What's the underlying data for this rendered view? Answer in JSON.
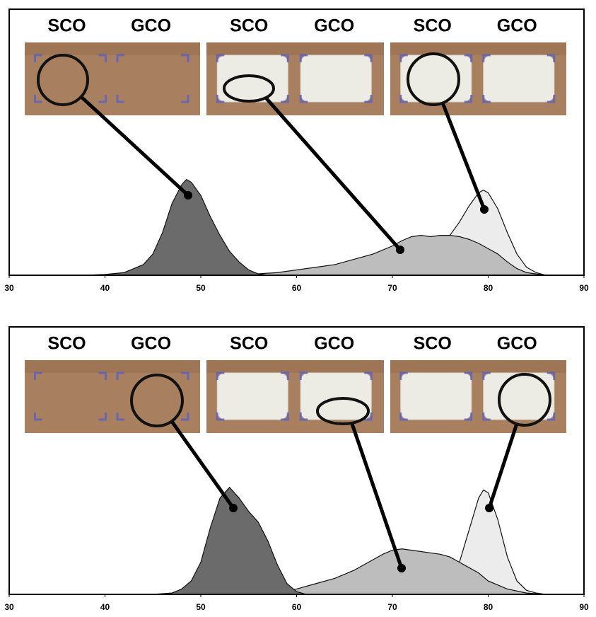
{
  "chart_data": [
    {
      "type": "area",
      "annotations": [
        "SCO",
        "GCO",
        "SCO",
        "GCO",
        "SCO",
        "GCO"
      ],
      "xlim": [
        30,
        90
      ],
      "xticks": [
        30,
        40,
        50,
        60,
        70,
        80,
        90
      ],
      "ylim": [
        0,
        100
      ],
      "series": [
        {
          "color": "#ececec",
          "x": [
            56,
            60,
            65,
            68,
            70,
            72,
            74,
            76,
            77,
            78,
            79,
            79.5,
            80,
            81,
            82,
            83,
            84,
            85,
            86
          ],
          "values": [
            0,
            1,
            3,
            5,
            7,
            9,
            11,
            15,
            20,
            26,
            31,
            32,
            31,
            25,
            16,
            8,
            3,
            1,
            0
          ]
        },
        {
          "color": "#bdbdbd",
          "x": [
            50,
            55,
            58,
            60,
            62,
            64,
            66,
            68,
            70,
            71,
            72,
            73,
            74,
            75,
            76,
            77,
            78,
            79,
            80,
            81,
            82,
            83,
            84,
            86
          ],
          "values": [
            0,
            0.3,
            1,
            2,
            3,
            4,
            6,
            8,
            11,
            13,
            14.5,
            15,
            14.5,
            15,
            15,
            14.5,
            13.5,
            12,
            10,
            8,
            5,
            2.5,
            1,
            0
          ]
        },
        {
          "color": "#6b6b6b",
          "x": [
            38,
            40,
            42,
            44,
            45,
            46,
            47,
            48,
            48.5,
            49,
            50,
            51,
            52,
            53,
            54,
            55,
            56,
            57
          ],
          "values": [
            0,
            0.3,
            1,
            4,
            8,
            16,
            27,
            34,
            36,
            35,
            30,
            22,
            15,
            9,
            5,
            2,
            0.5,
            0
          ]
        }
      ]
    },
    {
      "type": "area",
      "annotations": [
        "SCO",
        "GCO",
        "SCO",
        "GCO",
        "SCO",
        "GCO"
      ],
      "xlim": [
        30,
        90
      ],
      "xticks": [
        30,
        40,
        50,
        60,
        70,
        80,
        90
      ],
      "ylim": [
        0,
        100
      ],
      "series": [
        {
          "color": "#ececec",
          "x": [
            70,
            72,
            74,
            75,
            76,
            77,
            78,
            79,
            79.5,
            80,
            81,
            82,
            83,
            84,
            85,
            86
          ],
          "values": [
            0,
            0.5,
            1.5,
            3,
            6,
            12,
            24,
            36,
            39,
            38,
            28,
            14,
            5,
            1.5,
            0.5,
            0
          ]
        },
        {
          "color": "#bdbdbd",
          "x": [
            50,
            55,
            58,
            60,
            62,
            64,
            66,
            68,
            69,
            70,
            71,
            72,
            73,
            74,
            75,
            76,
            77,
            78,
            79,
            80,
            82,
            84,
            86
          ],
          "values": [
            0,
            0.3,
            1,
            2,
            4,
            6,
            9,
            13,
            15,
            16.5,
            17,
            16.5,
            16,
            15.5,
            15,
            14,
            12,
            10,
            8,
            5,
            2,
            0.5,
            0
          ]
        },
        {
          "color": "#6b6b6b",
          "x": [
            45,
            47,
            48,
            49,
            50,
            51,
            52,
            53,
            54,
            55,
            56,
            57,
            58,
            59,
            60,
            61
          ],
          "values": [
            0,
            0.5,
            2,
            5,
            12,
            25,
            36,
            40,
            36,
            31,
            27,
            20,
            11,
            4,
            1,
            0
          ]
        }
      ]
    }
  ]
}
